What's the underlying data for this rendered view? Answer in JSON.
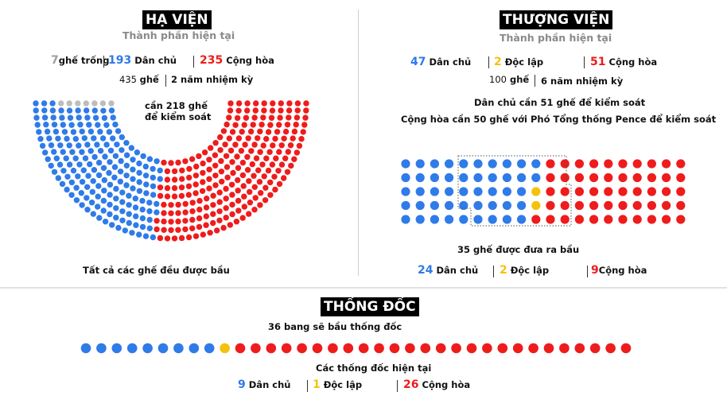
{
  "colors": {
    "dem": "#2f7be8",
    "rep": "#ee1c1c",
    "ind": "#f4c20d",
    "vacant": "#bdbdbd"
  },
  "house": {
    "title": "HẠ VIỆN",
    "subtitle": "Thành phần hiện tại",
    "vacant_num": "7",
    "vacant_label": "ghế trống",
    "dem_num": "193",
    "dem_label": "Dân chủ",
    "rep_num": "235",
    "rep_label": "Cộng hòa",
    "seats_num": "435",
    "seats_label": "ghế",
    "term": "2 năm nhiệm kỳ",
    "majority_line1": "cần 218 ghế",
    "majority_line2": "để kiểm soát",
    "footnote": "Tất cả các ghế đều được bầu"
  },
  "senate": {
    "title": "THƯỢNG VIỆN",
    "subtitle": "Thành phần hiện tại",
    "dem_num": "47",
    "dem_label": "Dân chủ",
    "ind_num": "2",
    "ind_label": "Độc lập",
    "rep_num": "51",
    "rep_label": "Cộng hòa",
    "seats_num": "100",
    "seats_label": "ghế",
    "term": "6 năm nhiệm kỳ",
    "note1": "Dân chủ cần 51 ghế để kiểm soát",
    "note2": "Cộng hòa cần 50 ghế với Phó Tổng thống Pence để kiểm soát",
    "up_label": "35 ghế được đưa ra bầu",
    "up_dem_num": "24",
    "up_dem_label": "Dân chủ",
    "up_ind_num": "2",
    "up_ind_label": "Độc lập",
    "up_rep_num": "9",
    "up_rep_label": "Cộng hòa"
  },
  "governors": {
    "title": "THỐNG ĐỐC",
    "subtitle": "36 bang sẽ bầu thống đốc",
    "current_label": "Các thống đốc hiện tại",
    "dem_num": "9",
    "dem_label": "Dân chủ",
    "ind_num": "1",
    "ind_label": "Độc lập",
    "rep_num": "26",
    "rep_label": "Cộng hòa"
  },
  "chart_data": [
    {
      "type": "parliament",
      "name": "house",
      "total": 435,
      "majority": 218,
      "series": [
        {
          "name": "ghế trống",
          "value": 7
        },
        {
          "name": "Dân chủ",
          "value": 193
        },
        {
          "name": "Cộng hòa",
          "value": 235
        }
      ]
    },
    {
      "type": "dot-grid",
      "name": "senate",
      "total": 100,
      "series": [
        {
          "name": "Dân chủ",
          "value": 47
        },
        {
          "name": "Độc lập",
          "value": 2
        },
        {
          "name": "Cộng hòa",
          "value": 51
        }
      ],
      "up_for_election": [
        {
          "name": "Dân chủ",
          "value": 24
        },
        {
          "name": "Độc lập",
          "value": 2
        },
        {
          "name": "Cộng hòa",
          "value": 9
        }
      ]
    },
    {
      "type": "dot-row",
      "name": "governors",
      "total": 36,
      "series": [
        {
          "name": "Dân chủ",
          "value": 9
        },
        {
          "name": "Độc lập",
          "value": 1
        },
        {
          "name": "Cộng hòa",
          "value": 26
        }
      ]
    }
  ]
}
